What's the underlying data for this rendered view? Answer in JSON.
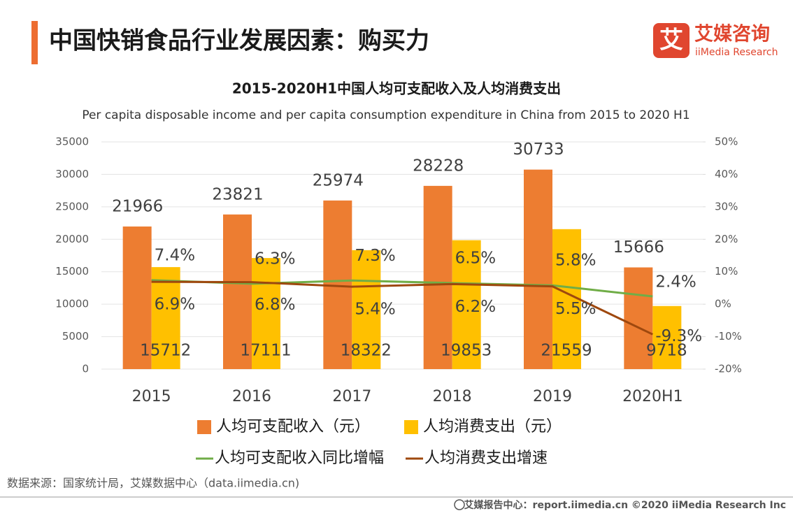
{
  "header": {
    "title": "中国快销食品行业发展因素：购买力",
    "logo_icon": "艾",
    "logo_cn": "艾媒咨询",
    "logo_en": "iiMedia Research"
  },
  "chart_data": {
    "type": "bar-line",
    "title": "2015-2020H1中国人均可支配收入及人均消费支出",
    "subtitle": "Per capita disposable income and per capita consumption expenditure in China from 2015 to 2020 H1",
    "categories": [
      "2015",
      "2016",
      "2017",
      "2018",
      "2019",
      "2020H1"
    ],
    "series": [
      {
        "name": "人均可支配收入（元）",
        "type": "bar",
        "color": "#ed7d31",
        "values": [
          21966,
          23821,
          25974,
          28228,
          30733,
          15666
        ]
      },
      {
        "name": "人均消费支出（元）",
        "type": "bar",
        "color": "#ffc000",
        "values": [
          15712,
          17111,
          18322,
          19853,
          21559,
          9718
        ]
      },
      {
        "name": "人均可支配收入同比增幅",
        "type": "line",
        "axis": "y2",
        "color": "#70ad47",
        "values": [
          7.4,
          6.3,
          7.3,
          6.5,
          5.8,
          2.4
        ],
        "value_labels": [
          "7.4%",
          "6.3%",
          "7.3%",
          "6.5%",
          "5.8%",
          "2.4%"
        ]
      },
      {
        "name": "人均消费支出增速",
        "type": "line",
        "axis": "y2",
        "color": "#9e480e",
        "values": [
          6.9,
          6.8,
          5.4,
          6.2,
          5.5,
          -9.3
        ],
        "value_labels": [
          "6.9%",
          "6.8%",
          "5.4%",
          "6.2%",
          "5.5%",
          "-9.3%"
        ]
      }
    ],
    "ylim": [
      0,
      35000
    ],
    "yticks": [
      0,
      5000,
      10000,
      15000,
      20000,
      25000,
      30000,
      35000
    ],
    "y2lim": [
      -20,
      50
    ],
    "y2ticks": [
      {
        "value": -20,
        "label": "-20%"
      },
      {
        "value": -10,
        "label": "-10%"
      },
      {
        "value": 0,
        "label": "0%"
      },
      {
        "value": 10,
        "label": "10%"
      },
      {
        "value": 20,
        "label": "20%"
      },
      {
        "value": 30,
        "label": "30%"
      },
      {
        "value": 40,
        "label": "40%"
      },
      {
        "value": 50,
        "label": "50%"
      }
    ],
    "grid": true
  },
  "source": "数据来源：国家统计局，艾媒数据中心（data.iimedia.cn)",
  "footer": "艾媒报告中心：report.iimedia.cn  ©2020  iiMedia Research  Inc"
}
